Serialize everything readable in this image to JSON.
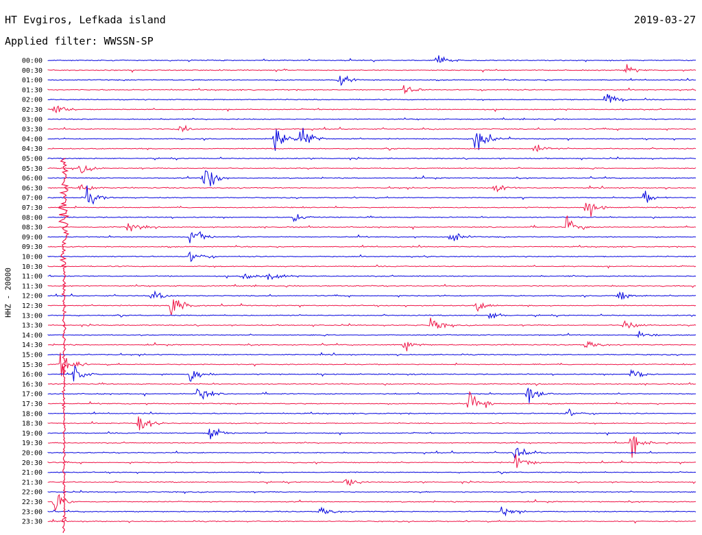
{
  "header": {
    "station": "HT Evgiros, Lefkada island",
    "date": "2019-03-27",
    "filter": "Applied filter: WWSSN-SP"
  },
  "chart_data": {
    "type": "line",
    "title": "HT Evgiros, Lefkada island",
    "ylabel": "HHZ - 20000",
    "colors": [
      "#0000dd",
      "#ee1144"
    ],
    "row_labels": [
      "00:00",
      "00:30",
      "01:00",
      "01:30",
      "02:00",
      "02:30",
      "03:00",
      "03:30",
      "04:00",
      "04:30",
      "05:00",
      "05:30",
      "06:00",
      "06:30",
      "07:00",
      "07:30",
      "08:00",
      "08:30",
      "09:00",
      "09:30",
      "10:00",
      "10:30",
      "11:00",
      "11:30",
      "12:00",
      "12:30",
      "13:00",
      "13:30",
      "14:00",
      "14:30",
      "15:00",
      "15:30",
      "16:00",
      "16:30",
      "17:00",
      "17:30",
      "18:00",
      "18:30",
      "19:00",
      "19:30",
      "20:00",
      "20:30",
      "21:00",
      "21:30",
      "22:00",
      "22:30",
      "23:00",
      "23:30"
    ],
    "events": [
      [
        0,
        0.6
      ],
      [
        1,
        0.89,
        0.6
      ],
      [
        2,
        0.45
      ],
      [
        3,
        0.55
      ],
      [
        4,
        0.86,
        1.2
      ],
      [
        5,
        0.01,
        1
      ],
      [
        7,
        0.2
      ],
      [
        8,
        0.35,
        2.2
      ],
      [
        8,
        0.39,
        2.6
      ],
      [
        8,
        0.66,
        2.4
      ],
      [
        9,
        0.75
      ],
      [
        11,
        0.05
      ],
      [
        12,
        0.24,
        3
      ],
      [
        13,
        0.05
      ],
      [
        13,
        0.69
      ],
      [
        14,
        0.06,
        1.2
      ],
      [
        14,
        0.92
      ],
      [
        15,
        0.83,
        1.6
      ],
      [
        16,
        0.38
      ],
      [
        17,
        0.12,
        1.2
      ],
      [
        17,
        0.8,
        1.6
      ],
      [
        18,
        0.22,
        1.8
      ],
      [
        18,
        0.62,
        1.2
      ],
      [
        20,
        0.22,
        1.2
      ],
      [
        22,
        0.3
      ],
      [
        22,
        0.34
      ],
      [
        24,
        0.16
      ],
      [
        24,
        0.88
      ],
      [
        25,
        0.19,
        2
      ],
      [
        25,
        0.66
      ],
      [
        26,
        0.68
      ],
      [
        27,
        0.59,
        1.2
      ],
      [
        27,
        0.89,
        1.2
      ],
      [
        28,
        0.91
      ],
      [
        29,
        0.55
      ],
      [
        29,
        0.83
      ],
      [
        31,
        0.02,
        3
      ],
      [
        32,
        0.04,
        1.5
      ],
      [
        32,
        0.22,
        1.5
      ],
      [
        32,
        0.9,
        1.2
      ],
      [
        34,
        0.23,
        1.5
      ],
      [
        34,
        0.74,
        1.6
      ],
      [
        35,
        0.65,
        3
      ],
      [
        36,
        0.8
      ],
      [
        37,
        0.14,
        1.5
      ],
      [
        38,
        0.25,
        1.4
      ],
      [
        39,
        0.9,
        1.6
      ],
      [
        40,
        0.72,
        1.2
      ],
      [
        41,
        0.72,
        1.6
      ],
      [
        43,
        0.46
      ],
      [
        45,
        0.01,
        1.4
      ],
      [
        46,
        0.42
      ],
      [
        46,
        0.7
      ]
    ],
    "big_quake": {
      "row": 15,
      "x": 0.025
    }
  }
}
